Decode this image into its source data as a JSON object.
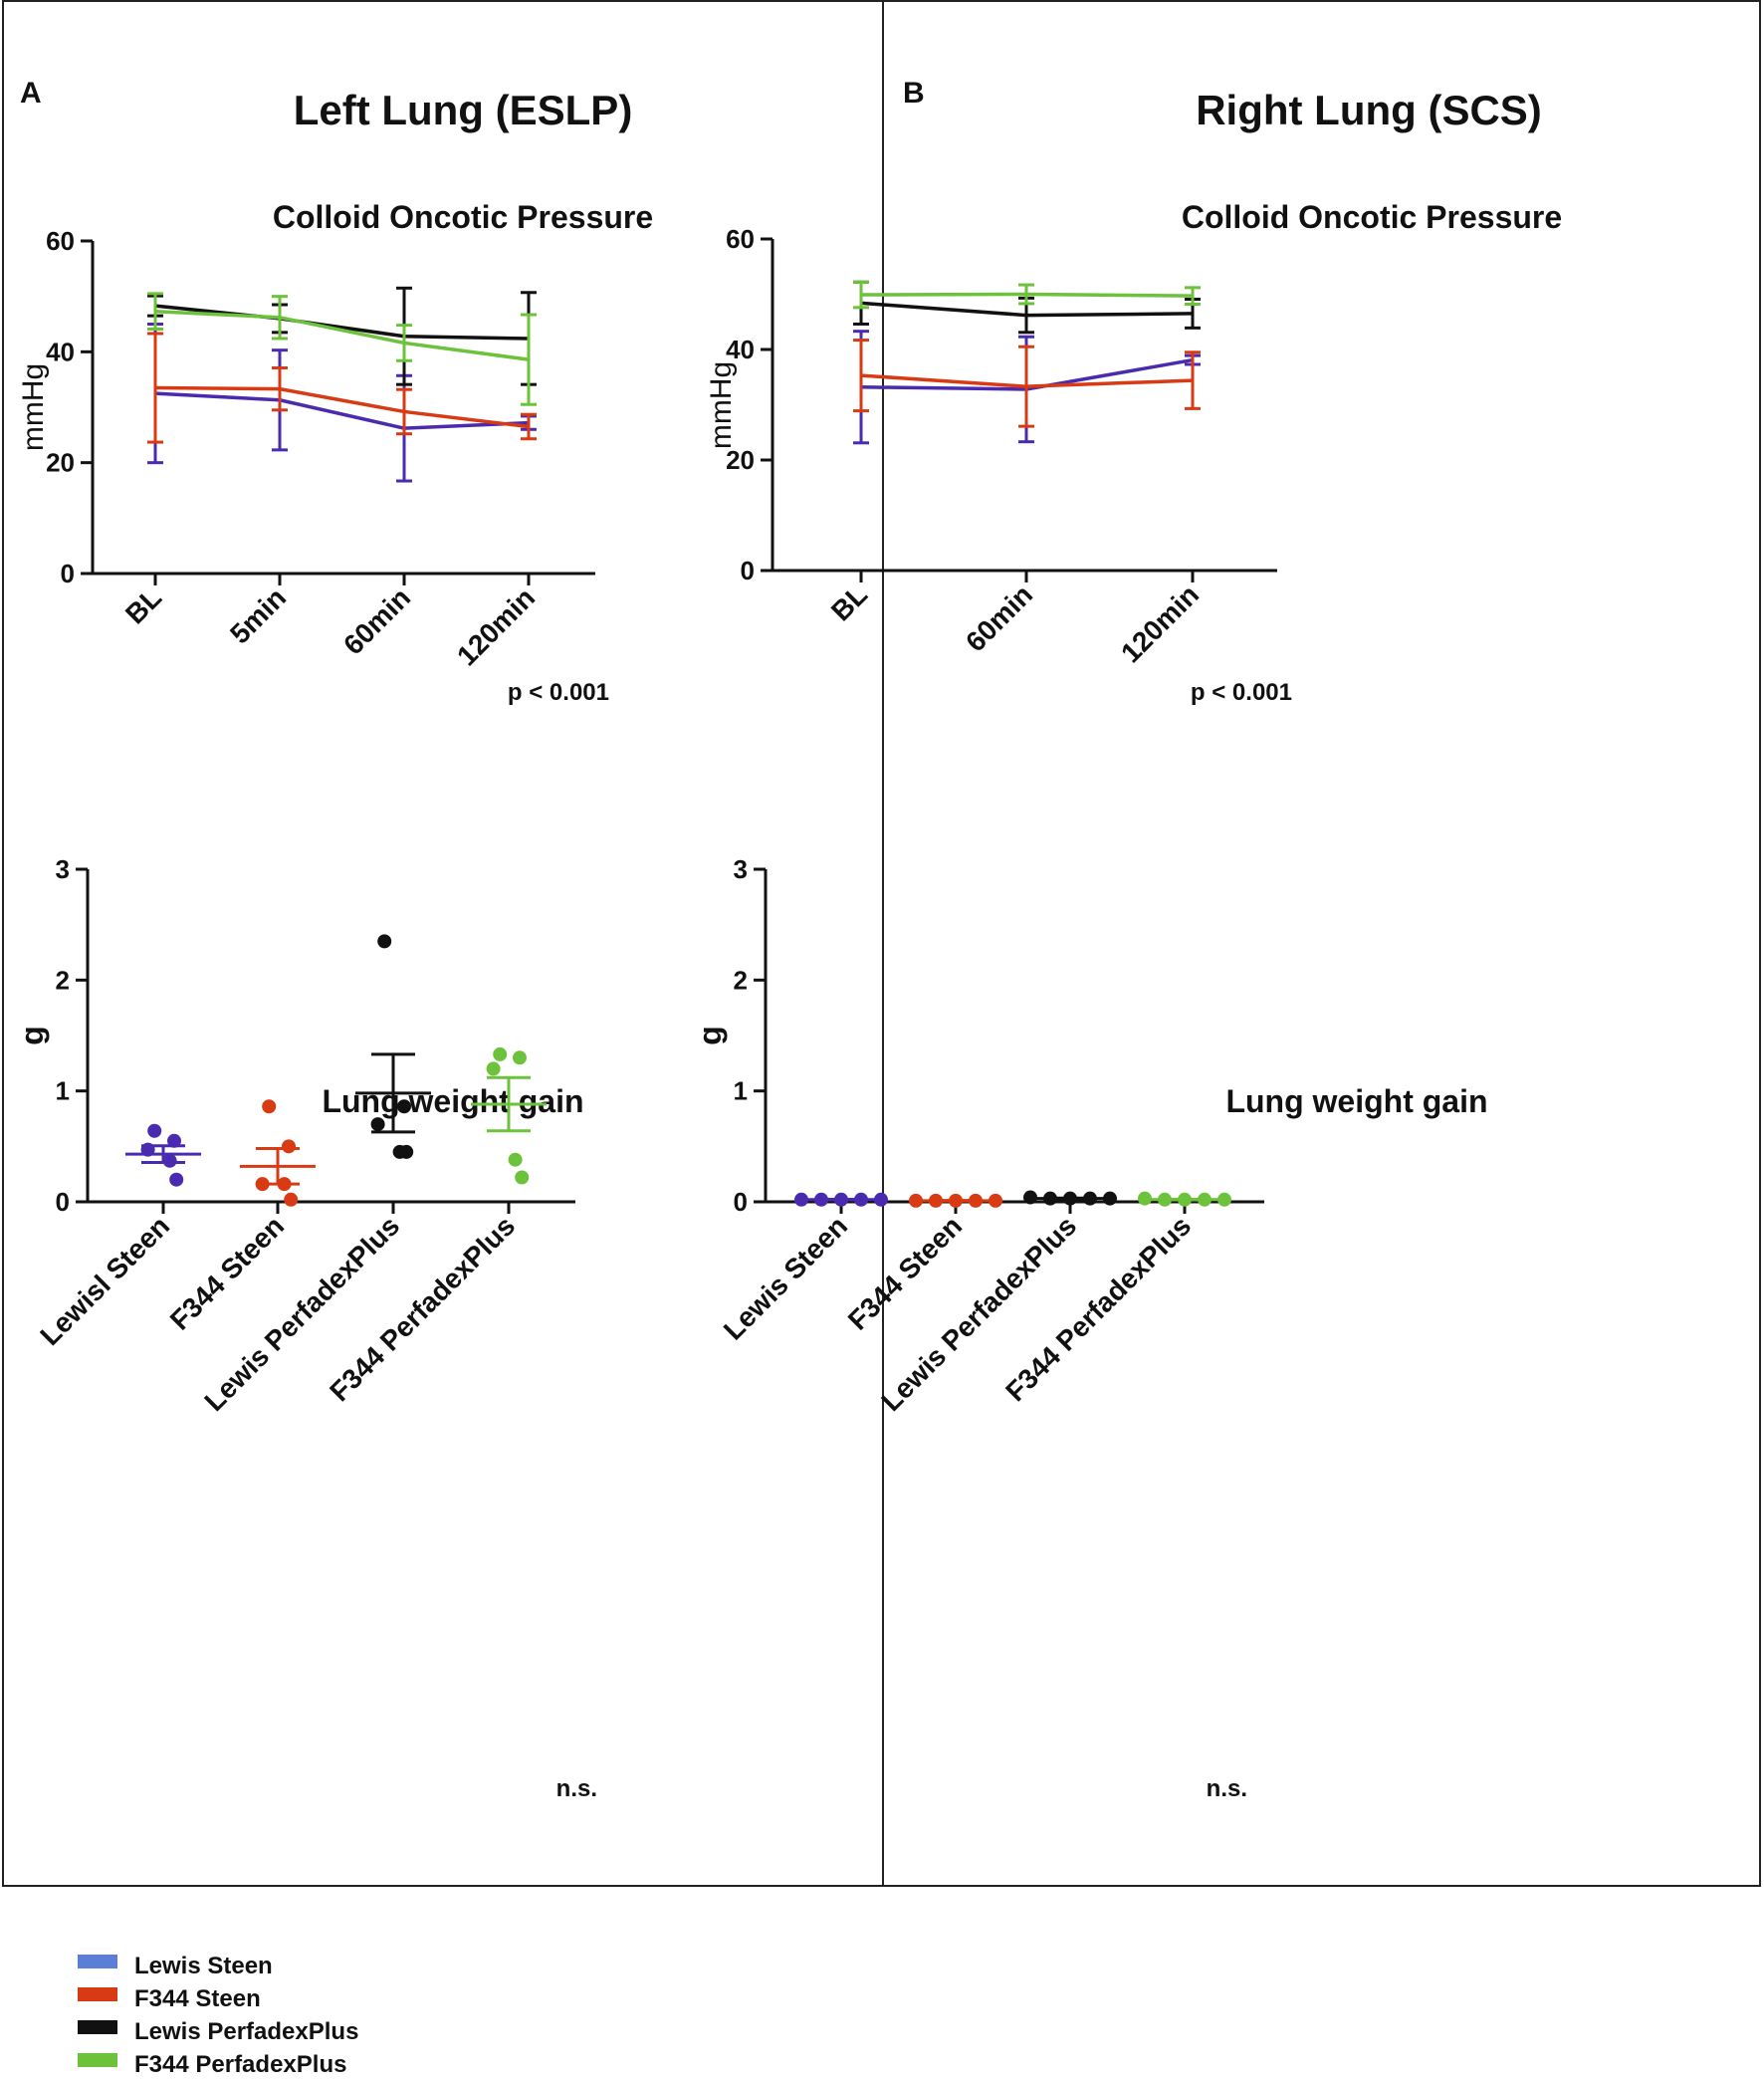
{
  "colors": {
    "lewis_steen": "#4a2bb0",
    "f344_steen": "#d83a14",
    "lewis_perfadex": "#111111",
    "f344_perfadex": "#6cc23a",
    "legend_lewis_steen": "#5b7fd6"
  },
  "panel_a": {
    "letter": "A",
    "title": "Left Lung (ESLP)"
  },
  "panel_b": {
    "letter": "B",
    "title": "Right Lung (SCS)"
  },
  "legend": {
    "items": [
      {
        "label": "Lewis Steen",
        "color_key": "legend_lewis_steen"
      },
      {
        "label": "F344 Steen",
        "color_key": "f344_steen"
      },
      {
        "label": "Lewis PerfadexPlus",
        "color_key": "lewis_perfadex"
      },
      {
        "label": "F344 PerfadexPlus",
        "color_key": "f344_perfadex"
      }
    ]
  },
  "chart_data": [
    {
      "id": "a_cop",
      "type": "line",
      "title": "Colloid Oncotic Pressure",
      "xlabel": "",
      "ylabel": "mmHg",
      "ylim": [
        0,
        60
      ],
      "yticks": [
        0,
        20,
        40,
        60
      ],
      "categories": [
        "BL",
        "5min",
        "60min",
        "120min"
      ],
      "annotation": "p < 0.001",
      "series": [
        {
          "name": "Lewis Steen",
          "color_key": "lewis_steen",
          "values": [
            32.5,
            31.3,
            26.2,
            27.2
          ],
          "err": [
            12.5,
            9.0,
            9.5,
            1.2
          ]
        },
        {
          "name": "F344 Steen",
          "color_key": "f344_steen",
          "values": [
            33.5,
            33.3,
            29.2,
            26.5
          ],
          "err": [
            9.8,
            3.8,
            4.0,
            2.2
          ]
        },
        {
          "name": "Lewis PerfadexPlus",
          "color_key": "lewis_perfadex",
          "values": [
            48.3,
            46.0,
            42.8,
            42.4
          ],
          "err": [
            1.8,
            2.5,
            8.7,
            8.3
          ]
        },
        {
          "name": "F344 PerfadexPlus",
          "color_key": "f344_perfadex",
          "values": [
            47.3,
            46.2,
            41.6,
            38.6
          ],
          "err": [
            3.2,
            3.8,
            3.2,
            8.1
          ]
        }
      ]
    },
    {
      "id": "b_cop",
      "type": "line",
      "title": "Colloid Oncotic Pressure",
      "xlabel": "",
      "ylabel": "mmHg",
      "ylim": [
        0,
        60
      ],
      "yticks": [
        0,
        20,
        40,
        60
      ],
      "categories": [
        "BL",
        "60min",
        "120min"
      ],
      "annotation": "p < 0.001",
      "series": [
        {
          "name": "Lewis Steen",
          "color_key": "lewis_steen",
          "values": [
            33.2,
            32.8,
            38.1
          ],
          "err": [
            10.1,
            9.5,
            0.8
          ]
        },
        {
          "name": "F344 Steen",
          "color_key": "f344_steen",
          "values": [
            35.3,
            33.3,
            34.4
          ],
          "err": [
            6.4,
            7.2,
            5.1
          ]
        },
        {
          "name": "Lewis PerfadexPlus",
          "color_key": "lewis_perfadex",
          "values": [
            48.4,
            46.2,
            46.5
          ],
          "err": [
            3.8,
            3.1,
            2.6
          ]
        },
        {
          "name": "F344 PerfadexPlus",
          "color_key": "f344_perfadex",
          "values": [
            49.9,
            50.0,
            49.7
          ],
          "err": [
            2.3,
            1.7,
            1.5
          ]
        }
      ]
    },
    {
      "id": "a_lwg",
      "type": "scatter",
      "title": "Lung weight gain",
      "xlabel": "",
      "ylabel": "g",
      "ylim": [
        0,
        3
      ],
      "yticks": [
        0,
        1,
        2,
        3
      ],
      "categories": [
        "Lewisl Steen",
        "F344 Steen",
        "Lewis PerfadexPlus",
        "F344 PerfadexPlus"
      ],
      "annotation": "n.s.",
      "groups": [
        {
          "name": "Lewis Steen",
          "color_key": "lewis_steen",
          "points": [
            0.64,
            0.55,
            0.47,
            0.37,
            0.2
          ],
          "mean": 0.43,
          "sem": 0.075
        },
        {
          "name": "F344 Steen",
          "color_key": "f344_steen",
          "points": [
            0.86,
            0.5,
            0.16,
            0.16,
            0.02
          ],
          "mean": 0.32,
          "sem": 0.16
        },
        {
          "name": "Lewis PerfadexPlus",
          "color_key": "lewis_perfadex",
          "points": [
            2.35,
            0.86,
            0.7,
            0.45,
            0.45
          ],
          "mean": 0.98,
          "sem": 0.35
        },
        {
          "name": "F344 PerfadexPlus",
          "color_key": "f344_perfadex",
          "points": [
            1.33,
            1.3,
            1.2,
            0.38,
            0.22
          ],
          "mean": 0.88,
          "sem": 0.24
        }
      ]
    },
    {
      "id": "b_lwg",
      "type": "scatter",
      "title": "Lung weight gain",
      "xlabel": "",
      "ylabel": "g",
      "ylim": [
        0,
        3
      ],
      "yticks": [
        0,
        1,
        2,
        3
      ],
      "categories": [
        "Lewis Steen",
        "F344 Steen",
        "Lewis PerfadexPlus",
        "F344 PerfadexPlus"
      ],
      "annotation": "n.s.",
      "groups": [
        {
          "name": "Lewis Steen",
          "color_key": "lewis_steen",
          "points": [
            0.02,
            0.02,
            0.02,
            0.02,
            0.02
          ],
          "mean": 0.02,
          "sem": 0.002
        },
        {
          "name": "F344 Steen",
          "color_key": "f344_steen",
          "points": [
            0.01,
            0.01,
            0.01,
            0.01,
            0.01
          ],
          "mean": 0.01,
          "sem": 0.002
        },
        {
          "name": "Lewis PerfadexPlus",
          "color_key": "lewis_perfadex",
          "points": [
            0.04,
            0.03,
            0.03,
            0.03,
            0.03
          ],
          "mean": 0.03,
          "sem": 0.004
        },
        {
          "name": "F344 PerfadexPlus",
          "color_key": "f344_perfadex",
          "points": [
            0.03,
            0.02,
            0.02,
            0.02,
            0.02
          ],
          "mean": 0.02,
          "sem": 0.002
        }
      ]
    }
  ]
}
